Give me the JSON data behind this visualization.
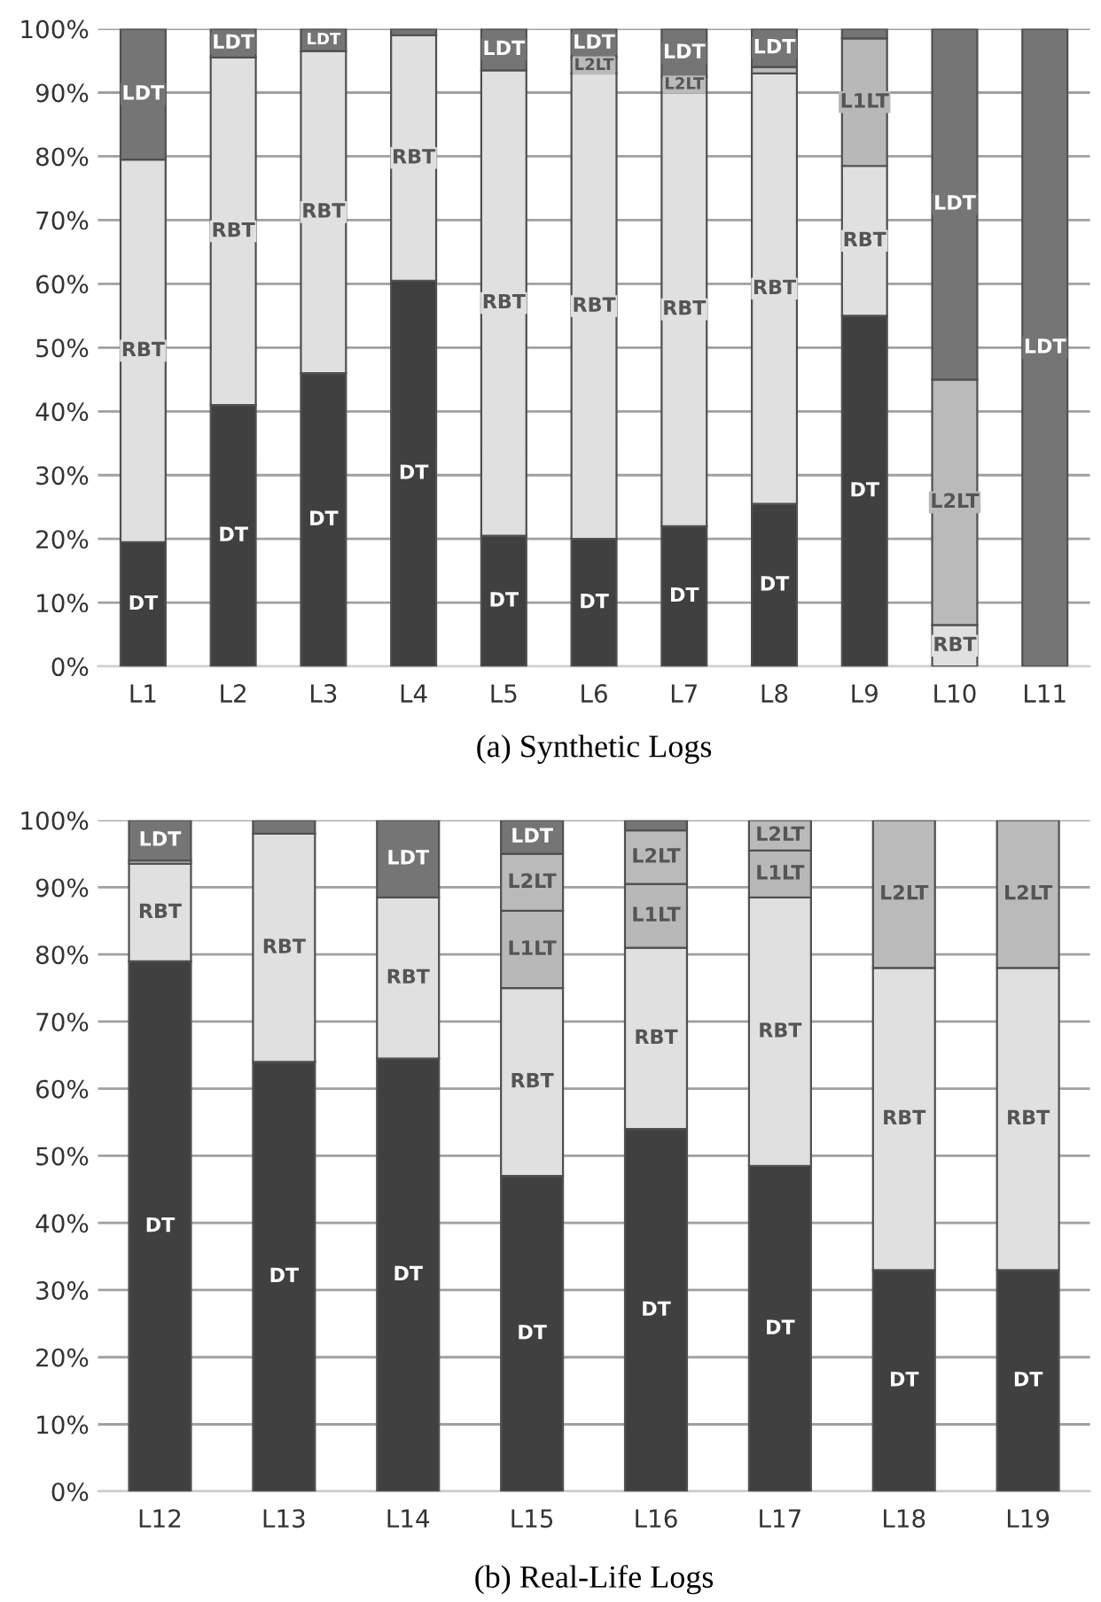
{
  "chart_data": [
    {
      "type": "bar",
      "title": "(a) Synthetic Logs",
      "stacked": true,
      "categories": [
        "L1",
        "L2",
        "L3",
        "L4",
        "L5",
        "L6",
        "L7",
        "L8",
        "L9",
        "L10",
        "L11"
      ],
      "ylim": [
        0,
        100
      ],
      "yticks": [
        {
          "value": 0,
          "label": "0%"
        },
        {
          "value": 10,
          "label": "10%"
        },
        {
          "value": 20,
          "label": "20%"
        },
        {
          "value": 30,
          "label": "30%"
        },
        {
          "value": 40,
          "label": "40%"
        },
        {
          "value": 50,
          "label": "50%"
        },
        {
          "value": 60,
          "label": "60%"
        },
        {
          "value": 70,
          "label": "70%"
        },
        {
          "value": 80,
          "label": "80%"
        },
        {
          "value": 90,
          "label": "90%"
        },
        {
          "value": 100,
          "label": "100%"
        }
      ],
      "grid": "y",
      "series": [
        {
          "color": "#404040",
          "values": [
            19.5,
            41,
            46,
            60.5,
            20.5,
            20,
            22,
            25.5,
            55,
            null,
            null
          ],
          "value_labels": [
            "DT",
            "DT",
            "DT",
            "DT",
            "DT",
            "DT",
            "DT",
            "DT",
            "DT",
            null,
            null
          ]
        },
        {
          "color": "#e0e0e0",
          "values": [
            60,
            54.5,
            50.5,
            38.5,
            73,
            73,
            68,
            67.5,
            23.5,
            6.5,
            null
          ],
          "value_labels": [
            "RBT",
            "RBT",
            "RBT",
            "RBT",
            "RBT",
            "RBT",
            "RBT",
            "RBT",
            "RBT",
            "RBT",
            null
          ]
        },
        {
          "color": "#b8b8b8",
          "values": [
            null,
            null,
            null,
            null,
            null,
            null,
            null,
            null,
            20,
            null,
            null
          ],
          "value_labels": [
            null,
            null,
            null,
            null,
            null,
            null,
            null,
            null,
            "L1LT",
            null,
            null
          ]
        },
        {
          "color": "#bababa",
          "values": [
            null,
            null,
            null,
            null,
            null,
            2.5,
            2.5,
            1,
            null,
            38.5,
            null
          ],
          "value_labels": [
            null,
            null,
            null,
            null,
            null,
            "L2LT",
            "L2LT",
            null,
            null,
            "L2LT",
            null
          ]
        },
        {
          "color": "#757575",
          "values": [
            20.5,
            4.5,
            3.5,
            1,
            6.5,
            4.5,
            7.5,
            6,
            1.5,
            55,
            100
          ],
          "value_labels": [
            "LDT",
            "LDT",
            "LDT",
            null,
            "LDT",
            "LDT",
            "LDT",
            "LDT",
            null,
            "LDT",
            "LDT"
          ]
        }
      ]
    },
    {
      "type": "bar",
      "title": "(b) Real-Life Logs",
      "stacked": true,
      "categories": [
        "L12",
        "L13",
        "L14",
        "L15",
        "L16",
        "L17",
        "L18",
        "L19"
      ],
      "ylim": [
        0,
        100
      ],
      "yticks": [
        {
          "value": 0,
          "label": "0%"
        },
        {
          "value": 10,
          "label": "10%"
        },
        {
          "value": 20,
          "label": "20%"
        },
        {
          "value": 30,
          "label": "30%"
        },
        {
          "value": 40,
          "label": "40%"
        },
        {
          "value": 50,
          "label": "50%"
        },
        {
          "value": 60,
          "label": "60%"
        },
        {
          "value": 70,
          "label": "70%"
        },
        {
          "value": 80,
          "label": "80%"
        },
        {
          "value": 90,
          "label": "90%"
        },
        {
          "value": 100,
          "label": "100%"
        }
      ],
      "grid": "y",
      "series": [
        {
          "color": "#404040",
          "values": [
            79,
            64,
            64.5,
            47,
            54,
            48.5,
            33,
            33
          ],
          "value_labels": [
            "DT",
            "DT",
            "DT",
            "DT",
            "DT",
            "DT",
            "DT",
            "DT"
          ]
        },
        {
          "color": "#e0e0e0",
          "values": [
            14.5,
            34,
            24,
            28,
            27,
            40,
            45,
            45
          ],
          "value_labels": [
            "RBT",
            "RBT",
            "RBT",
            "RBT",
            "RBT",
            "RBT",
            "RBT",
            "RBT"
          ]
        },
        {
          "color": "#b8b8b8",
          "values": [
            null,
            null,
            null,
            11.5,
            9.5,
            7,
            null,
            null
          ],
          "value_labels": [
            null,
            null,
            null,
            "L1LT",
            "L1LT",
            "L1LT",
            null,
            null
          ]
        },
        {
          "color": "#bababa",
          "values": [
            0.5,
            null,
            null,
            8.5,
            8,
            4.5,
            22,
            22
          ],
          "value_labels": [
            null,
            null,
            null,
            "L2LT",
            "L2LT",
            "L2LT",
            "L2LT",
            "L2LT"
          ]
        },
        {
          "color": "#757575",
          "values": [
            6,
            2,
            11.5,
            5,
            1.5,
            null,
            null,
            null
          ],
          "value_labels": [
            "LDT",
            null,
            "LDT",
            "LDT",
            null,
            null,
            null,
            null
          ]
        }
      ]
    }
  ]
}
